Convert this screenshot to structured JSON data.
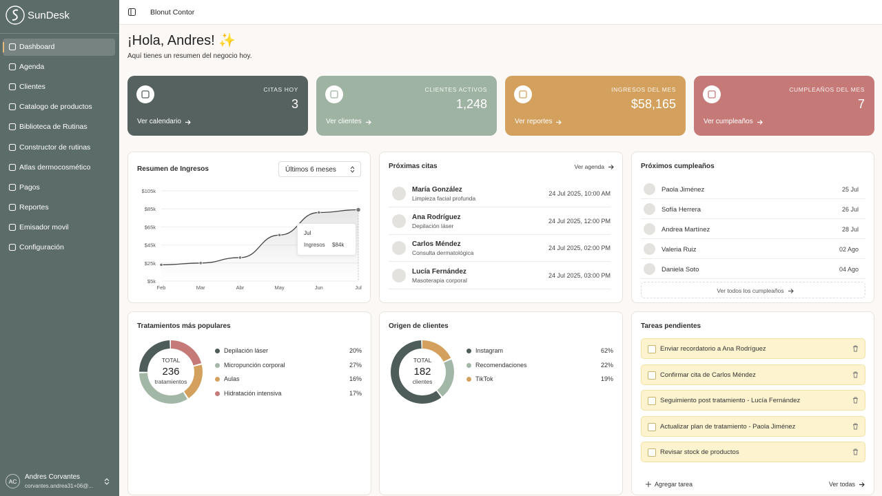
{
  "sidebar": {
    "brand": "SunDesk",
    "nav": [
      "Dashboard",
      "Agenda",
      "Clientes",
      "Catalogo de productos",
      "Biblioteca de Rutinas",
      "Constructor de rutinas",
      "Atlas dermocosmético",
      "Pagos",
      "Reportes",
      "Emisador movil",
      "Configuración"
    ],
    "user": {
      "initials": "AC",
      "name": "Andres Corvantes",
      "email": "corvantes.andrea31+06@..."
    }
  },
  "topbar": {
    "title": "Blonut Contor"
  },
  "header": {
    "title": "¡Hola, Andres! ✨",
    "subtitle": "Aquí tienes un resumen del negocio hoy."
  },
  "cards": [
    {
      "label": "CITAS HOY",
      "value": "3",
      "link": "Ver calendario",
      "color": "#56625f"
    },
    {
      "label": "CLIENTES ACTIVOS",
      "value": "1,248",
      "link": "Ver clientes",
      "color": "#9fb3a3"
    },
    {
      "label": "INGRESOS DEL MES",
      "value": "$58,165",
      "link": "Ver reportes",
      "color": "#d3a15d"
    },
    {
      "label": "CUMPLEAÑOS DEL MES",
      "value": "7",
      "link": "Ver cumpleaños",
      "color": "#c57a78"
    }
  ],
  "revenue": {
    "title": "Resumen de Ingresos",
    "range": "Últimos 6 meses",
    "categories": [
      "Feb",
      "Mar",
      "Abr",
      "May",
      "Jun",
      "Jul"
    ],
    "values": [
      23,
      25,
      31,
      56,
      81,
      84
    ],
    "ylim": [
      5,
      105
    ],
    "yticks": [
      {
        "value": 5,
        "label": "$5k"
      },
      {
        "value": 25,
        "label": "$25k"
      },
      {
        "value": 45,
        "label": "$45k"
      },
      {
        "value": 65,
        "label": "$65k"
      },
      {
        "value": 85,
        "label": "$85k"
      },
      {
        "value": 105,
        "label": "$105k"
      }
    ],
    "color": "#444444",
    "tooltip_label": "Ingresos",
    "tooltip_value": "$84k"
  },
  "appointments": {
    "title": "Próximas citas",
    "link": "Ver agenda",
    "items": [
      {
        "name": "María González",
        "service": "Limpieza facial profunda",
        "date": "24 Jul 2025, 10:00 AM"
      },
      {
        "name": "Ana Rodríguez",
        "service": "Depilación láser",
        "date": "24 Jul 2025, 12:00 PM"
      },
      {
        "name": "Carlos Méndez",
        "service": "Consulta dermatológica",
        "date": "24 Jul 2025, 02:00 PM"
      },
      {
        "name": "Lucía Fernández",
        "service": "Masoterapia corporal",
        "date": "24 Jul 2025, 03:00 PM"
      }
    ]
  },
  "birthdays": {
    "title": "Próximos cumpleaños",
    "items": [
      {
        "name": "Paola Jiménez",
        "date": "25 Jul"
      },
      {
        "name": "Sofía Herrera",
        "date": "26 Jul"
      },
      {
        "name": "Andrea Martínez",
        "date": "28 Jul"
      },
      {
        "name": "Valeria Ruiz",
        "date": "02 Ago"
      },
      {
        "name": "Daniela Soto",
        "date": "04 Ago"
      }
    ],
    "link": "Ver todos los cumpleaños"
  },
  "treatments": {
    "title": "Tratamientos más populares",
    "total_label": "TOTAL",
    "total": "236",
    "total_unit": "tratamientos",
    "categories": [
      "Depilación láser",
      "Micropunción corporal",
      "Aulas",
      "Hidratación intensiva"
    ],
    "values": [
      20,
      27,
      16,
      17
    ],
    "value_labels": [
      "20%",
      "27%",
      "16%",
      "17%"
    ],
    "colors": [
      "#4f5d5a",
      "#a3b7a7",
      "#d3a15d",
      "#c57a78"
    ]
  },
  "origins": {
    "title": "Origen de clientes",
    "total_label": "TOTAL",
    "total": "182",
    "total_unit": "clientes",
    "categories": [
      "Instagram",
      "Recomendaciones",
      "TikTok"
    ],
    "values": [
      62,
      22,
      19
    ],
    "value_labels": [
      "62%",
      "22%",
      "19%"
    ],
    "colors": [
      "#4f5d5a",
      "#a3b7a7",
      "#d3a15d"
    ]
  },
  "tasks": {
    "title": "Tareas pendientes",
    "items": [
      "Enviar recordatorio a Ana Rodríguez",
      "Confirmar cita de Carlos Méndez",
      "Seguimiento post tratamiento - Lucía Fernández",
      "Actualizar plan de tratamiento - Paola Jiménez",
      "Revisar stock de productos"
    ],
    "add": "Agregar tarea",
    "link": "Ver todas"
  }
}
